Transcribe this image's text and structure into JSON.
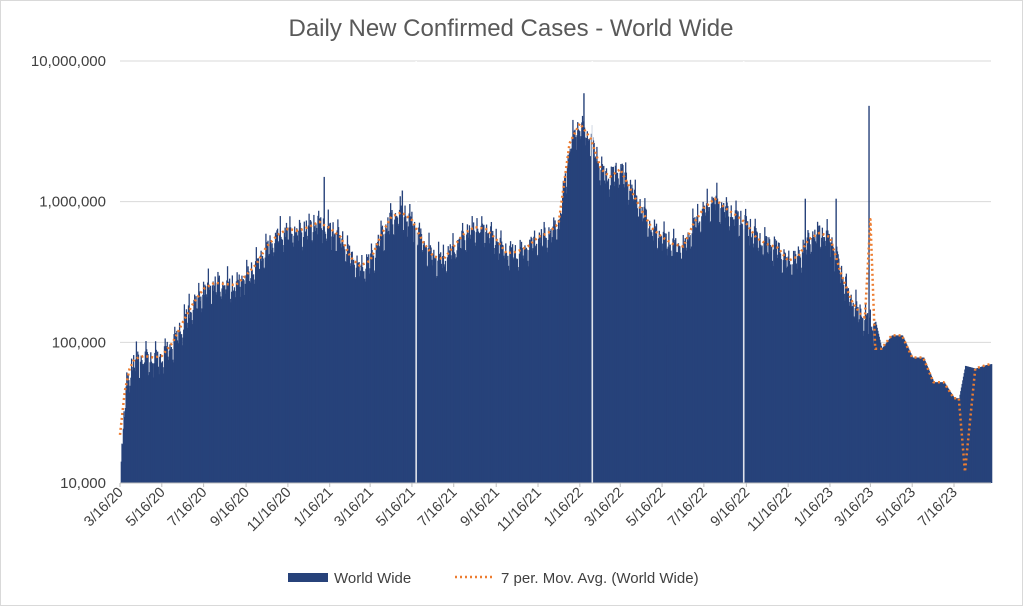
{
  "chart_data": {
    "type": "bar",
    "title": "Daily New Confirmed Cases - World Wide",
    "xlabel": "",
    "ylabel": "",
    "y_scale": "log",
    "ylim": [
      10000,
      10000000
    ],
    "y_ticks": [
      10000,
      100000,
      1000000,
      10000000
    ],
    "y_tick_labels": [
      "10,000",
      "100,000",
      "1,000,000",
      "10,000,000"
    ],
    "x_tick_labels": [
      "3/16/20",
      "5/16/20",
      "7/16/20",
      "9/16/20",
      "11/16/20",
      "1/16/21",
      "3/16/21",
      "5/16/21",
      "7/16/21",
      "9/16/21",
      "11/16/21",
      "1/16/22",
      "3/16/22",
      "5/16/22",
      "7/16/22",
      "9/16/22",
      "11/16/22",
      "1/16/23",
      "3/16/23",
      "5/16/23",
      "7/16/23"
    ],
    "x_range": [
      "2020-03-16",
      "2023-09-08"
    ],
    "grid": true,
    "legend_position": "bottom",
    "colors": {
      "bars": "#27427a",
      "moving_avg": "#ed7d31",
      "grid": "#d9d9d9"
    },
    "series": [
      {
        "name": "World Wide",
        "type": "bar",
        "x": [
          "2020-03-16",
          "2020-03-23",
          "2020-03-30",
          "2020-04-06",
          "2020-04-20",
          "2020-05-04",
          "2020-05-16",
          "2020-06-01",
          "2020-06-16",
          "2020-07-01",
          "2020-07-16",
          "2020-08-01",
          "2020-08-16",
          "2020-09-01",
          "2020-09-16",
          "2020-10-01",
          "2020-10-16",
          "2020-11-01",
          "2020-11-16",
          "2020-12-01",
          "2020-12-16",
          "2021-01-01",
          "2021-01-08",
          "2021-01-16",
          "2021-02-01",
          "2021-02-16",
          "2021-03-01",
          "2021-03-16",
          "2021-04-01",
          "2021-04-16",
          "2021-05-01",
          "2021-05-16",
          "2021-06-01",
          "2021-06-16",
          "2021-07-01",
          "2021-07-16",
          "2021-08-01",
          "2021-08-16",
          "2021-09-01",
          "2021-09-16",
          "2021-10-01",
          "2021-10-16",
          "2021-11-01",
          "2021-11-16",
          "2021-12-01",
          "2021-12-16",
          "2022-01-01",
          "2022-01-16",
          "2022-02-01",
          "2022-02-16",
          "2022-03-01",
          "2022-03-16",
          "2022-04-01",
          "2022-04-16",
          "2022-05-01",
          "2022-05-16",
          "2022-06-01",
          "2022-06-16",
          "2022-07-01",
          "2022-07-16",
          "2022-08-01",
          "2022-08-16",
          "2022-09-01",
          "2022-09-16",
          "2022-10-01",
          "2022-10-16",
          "2022-11-01",
          "2022-11-16",
          "2022-12-01",
          "2022-12-16",
          "2023-01-01",
          "2023-01-16",
          "2023-02-01",
          "2023-02-16",
          "2023-03-01",
          "2023-03-08",
          "2023-03-16",
          "2023-03-23",
          "2023-04-01",
          "2023-04-16",
          "2023-05-01",
          "2023-05-16",
          "2023-06-01",
          "2023-06-16",
          "2023-07-01",
          "2023-07-16",
          "2023-07-23",
          "2023-08-01",
          "2023-08-16",
          "2023-09-01",
          "2023-09-08"
        ],
        "values": [
          12000,
          40000,
          62000,
          75000,
          80000,
          78000,
          80000,
          100000,
          140000,
          190000,
          240000,
          265000,
          260000,
          255000,
          300000,
          360000,
          480000,
          580000,
          640000,
          620000,
          660000,
          720000,
          680000,
          650000,
          560000,
          400000,
          350000,
          380000,
          580000,
          780000,
          840000,
          740000,
          520000,
          410000,
          390000,
          480000,
          600000,
          660000,
          640000,
          540000,
          430000,
          440000,
          480000,
          560000,
          600000,
          700000,
          2600000,
          3600000,
          2800000,
          1700000,
          1500000,
          1700000,
          1200000,
          870000,
          650000,
          560000,
          500000,
          480000,
          700000,
          900000,
          1050000,
          900000,
          800000,
          700000,
          550000,
          500000,
          470000,
          380000,
          410000,
          540000,
          600000,
          560000,
          310000,
          200000,
          160000,
          150000,
          130000,
          140000,
          90000,
          112000,
          112000,
          78000,
          78000,
          52000,
          52000,
          40000,
          40000,
          68000,
          65000,
          69000,
          70000
        ]
      },
      {
        "name": "7 per. Mov. Avg. (World Wide)",
        "type": "line",
        "x": [
          "2020-03-16",
          "2020-03-23",
          "2020-03-30",
          "2020-04-06",
          "2020-04-20",
          "2020-05-04",
          "2020-05-16",
          "2020-06-01",
          "2020-06-16",
          "2020-07-01",
          "2020-07-16",
          "2020-08-01",
          "2020-08-16",
          "2020-09-01",
          "2020-09-16",
          "2020-10-01",
          "2020-10-16",
          "2020-11-01",
          "2020-11-16",
          "2020-12-01",
          "2020-12-16",
          "2021-01-01",
          "2021-01-08",
          "2021-01-16",
          "2021-02-01",
          "2021-02-16",
          "2021-03-01",
          "2021-03-16",
          "2021-04-01",
          "2021-04-16",
          "2021-05-01",
          "2021-05-16",
          "2021-06-01",
          "2021-06-16",
          "2021-07-01",
          "2021-07-16",
          "2021-08-01",
          "2021-08-16",
          "2021-09-01",
          "2021-09-16",
          "2021-10-01",
          "2021-10-16",
          "2021-11-01",
          "2021-11-16",
          "2021-12-01",
          "2021-12-16",
          "2022-01-01",
          "2022-01-16",
          "2022-02-01",
          "2022-02-16",
          "2022-03-01",
          "2022-03-16",
          "2022-04-01",
          "2022-04-16",
          "2022-05-01",
          "2022-05-16",
          "2022-06-01",
          "2022-06-16",
          "2022-07-01",
          "2022-07-16",
          "2022-08-01",
          "2022-08-16",
          "2022-09-01",
          "2022-09-16",
          "2022-10-01",
          "2022-10-16",
          "2022-11-01",
          "2022-11-16",
          "2022-12-01",
          "2022-12-16",
          "2023-01-01",
          "2023-01-16",
          "2023-02-01",
          "2023-02-16",
          "2023-03-01",
          "2023-03-08",
          "2023-03-16",
          "2023-03-23",
          "2023-04-01",
          "2023-04-16",
          "2023-05-01",
          "2023-05-16",
          "2023-06-01",
          "2023-06-16",
          "2023-07-01",
          "2023-07-16",
          "2023-07-23",
          "2023-08-01",
          "2023-08-16",
          "2023-09-01",
          "2023-09-08"
        ],
        "values": [
          22000,
          45000,
          65000,
          76000,
          80000,
          78000,
          80000,
          100000,
          140000,
          190000,
          240000,
          265000,
          260000,
          255000,
          300000,
          360000,
          480000,
          580000,
          640000,
          620000,
          660000,
          720000,
          680000,
          650000,
          560000,
          400000,
          350000,
          380000,
          580000,
          780000,
          840000,
          740000,
          520000,
          410000,
          390000,
          480000,
          600000,
          660000,
          640000,
          540000,
          430000,
          440000,
          480000,
          560000,
          600000,
          700000,
          2600000,
          3600000,
          2800000,
          1700000,
          1500000,
          1700000,
          1200000,
          870000,
          650000,
          560000,
          500000,
          480000,
          700000,
          900000,
          1050000,
          900000,
          800000,
          700000,
          550000,
          500000,
          470000,
          380000,
          410000,
          540000,
          600000,
          560000,
          310000,
          200000,
          160000,
          150000,
          750000,
          90000,
          90000,
          112000,
          112000,
          78000,
          78000,
          52000,
          52000,
          40000,
          40000,
          12000,
          65000,
          69000,
          70000
        ]
      }
    ],
    "spikes": [
      {
        "x": "2021-01-07",
        "value": 1500000
      },
      {
        "x": "2021-05-01",
        "value": 1200000
      },
      {
        "x": "2021-05-21",
        "value": 10000
      },
      {
        "x": "2021-12-28",
        "value": 1800000
      },
      {
        "x": "2022-01-21",
        "value": 5900000
      },
      {
        "x": "2022-02-02",
        "value": 10000
      },
      {
        "x": "2022-04-17",
        "value": 110000
      },
      {
        "x": "2022-05-23",
        "value": 95000
      },
      {
        "x": "2022-09-11",
        "value": 10000
      },
      {
        "x": "2022-12-10",
        "value": 1050000
      },
      {
        "x": "2023-01-24",
        "value": 1050000
      },
      {
        "x": "2023-03-13",
        "value": 4800000
      },
      {
        "x": "2023-03-15",
        "value": 14000
      }
    ]
  }
}
